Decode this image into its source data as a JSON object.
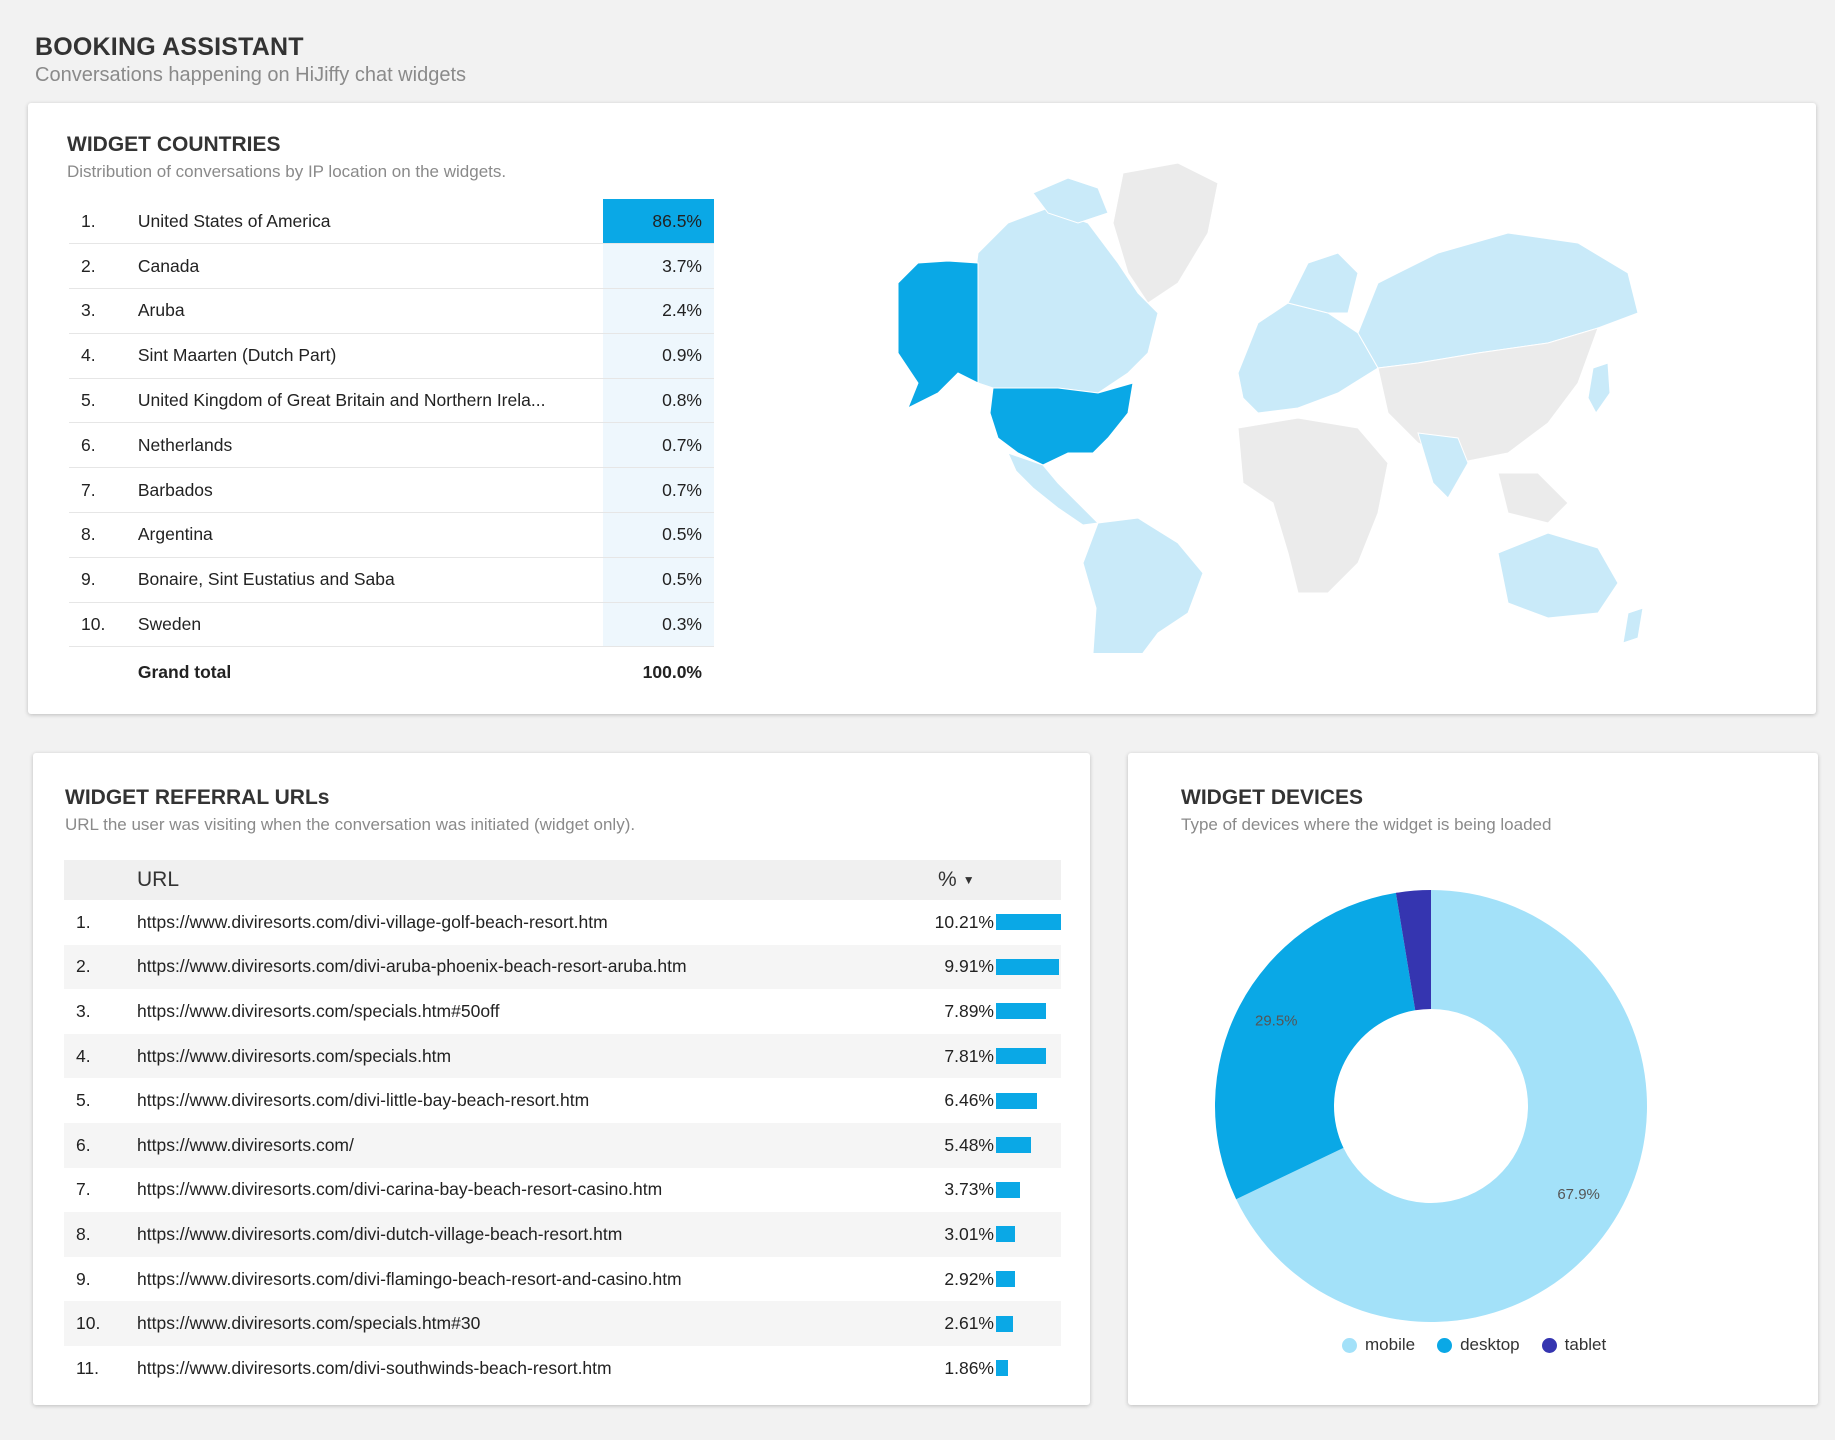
{
  "header": {
    "title": "BOOKING ASSISTANT",
    "subtitle": "Conversations happening on HiJiffy chat widgets"
  },
  "countries": {
    "title": "WIDGET COUNTRIES",
    "subtitle": "Distribution of conversations by IP location on the widgets.",
    "rows": [
      {
        "rank": "1.",
        "name": "United States of America",
        "pct": "86.5%"
      },
      {
        "rank": "2.",
        "name": "Canada",
        "pct": "3.7%"
      },
      {
        "rank": "3.",
        "name": "Aruba",
        "pct": "2.4%"
      },
      {
        "rank": "4.",
        "name": "Sint Maarten (Dutch Part)",
        "pct": "0.9%"
      },
      {
        "rank": "5.",
        "name": "United Kingdom of Great Britain and Northern Irela...",
        "pct": "0.8%"
      },
      {
        "rank": "6.",
        "name": "Netherlands",
        "pct": "0.7%"
      },
      {
        "rank": "7.",
        "name": "Barbados",
        "pct": "0.7%"
      },
      {
        "rank": "8.",
        "name": "Argentina",
        "pct": "0.5%"
      },
      {
        "rank": "9.",
        "name": "Bonaire, Sint Eustatius and Saba",
        "pct": "0.5%"
      },
      {
        "rank": "10.",
        "name": "Sweden",
        "pct": "0.3%"
      }
    ],
    "total_label": "Grand total",
    "total_value": "100.0%",
    "colors": {
      "highlight": "#0aa8e6",
      "light": "#c9eaf9",
      "none": "#e6e6e6"
    }
  },
  "referrals": {
    "title": "WIDGET REFERRAL URLs",
    "subtitle": "URL the user was visiting when the conversation was initiated (widget only).",
    "col_url": "URL",
    "col_pct": "%",
    "rows": [
      {
        "rank": "1.",
        "url": "https://www.diviresorts.com/divi-village-golf-beach-resort.htm",
        "pct": "10.21%",
        "value": 10.21
      },
      {
        "rank": "2.",
        "url": "https://www.diviresorts.com/divi-aruba-phoenix-beach-resort-aruba.htm",
        "pct": "9.91%",
        "value": 9.91
      },
      {
        "rank": "3.",
        "url": "https://www.diviresorts.com/specials.htm#50off",
        "pct": "7.89%",
        "value": 7.89
      },
      {
        "rank": "4.",
        "url": "https://www.diviresorts.com/specials.htm",
        "pct": "7.81%",
        "value": 7.81
      },
      {
        "rank": "5.",
        "url": "https://www.diviresorts.com/divi-little-bay-beach-resort.htm",
        "pct": "6.46%",
        "value": 6.46
      },
      {
        "rank": "6.",
        "url": "https://www.diviresorts.com/",
        "pct": "5.48%",
        "value": 5.48
      },
      {
        "rank": "7.",
        "url": "https://www.diviresorts.com/divi-carina-bay-beach-resort-casino.htm",
        "pct": "3.73%",
        "value": 3.73
      },
      {
        "rank": "8.",
        "url": "https://www.diviresorts.com/divi-dutch-village-beach-resort.htm",
        "pct": "3.01%",
        "value": 3.01
      },
      {
        "rank": "9.",
        "url": "https://www.diviresorts.com/divi-flamingo-beach-resort-and-casino.htm",
        "pct": "2.92%",
        "value": 2.92
      },
      {
        "rank": "10.",
        "url": "https://www.diviresorts.com/specials.htm#30",
        "pct": "2.61%",
        "value": 2.61
      },
      {
        "rank": "11.",
        "url": "https://www.diviresorts.com/divi-southwinds-beach-resort.htm",
        "pct": "1.86%",
        "value": 1.86
      }
    ],
    "bar_color": "#0aa8e6"
  },
  "devices": {
    "title": "WIDGET DEVICES",
    "subtitle": "Type of devices where the widget is being loaded",
    "chart_data": {
      "type": "pie",
      "categories": [
        "mobile",
        "desktop",
        "tablet"
      ],
      "values": [
        67.9,
        29.5,
        2.6
      ],
      "labels": [
        "67.9%",
        "29.5%",
        ""
      ],
      "colors": [
        "#a3e1f9",
        "#0aa8e6",
        "#3535b0"
      ],
      "legend": "bottom"
    }
  }
}
